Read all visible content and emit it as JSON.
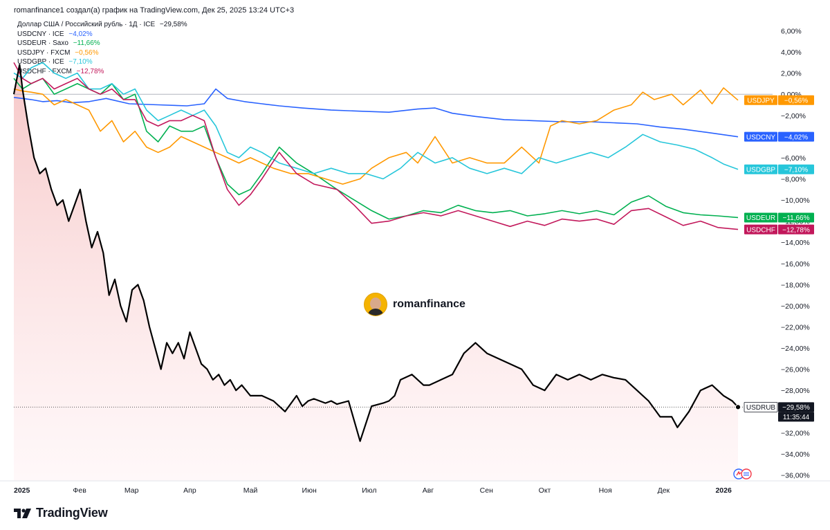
{
  "header": {
    "title": "romanfinance1 создал(а) график на TradingView.com, Дек 25, 2025 13:24 UTC+3"
  },
  "legend": {
    "main": {
      "label": "Доллар США / Российский рубль · 1Д · ICE",
      "change": "−29,58%",
      "color": "#131722"
    },
    "items": [
      {
        "label": "USDCNY · ICE",
        "change": "−4,02%",
        "color": "#2962ff"
      },
      {
        "label": "USDEUR · Saxo",
        "change": "−11,66%",
        "color": "#00b050"
      },
      {
        "label": "USDJPY · FXCM",
        "change": "−0,56%",
        "color": "#ff9800"
      },
      {
        "label": "USDGBP · ICE",
        "change": "−7,10%",
        "color": "#26c6da"
      },
      {
        "label": "USDCHF · FXCM",
        "change": "−12,78%",
        "color": "#c2185b"
      }
    ]
  },
  "watermark": {
    "text": "romanfinance"
  },
  "brand": {
    "text": "TradingView"
  },
  "chart_data": {
    "type": "line",
    "title": "Доллар США / Российский рубль · 1Д · ICE",
    "ylim": [
      -37,
      7
    ],
    "y_ticks": [
      6,
      4,
      2,
      0,
      -2,
      -4,
      -6,
      -8,
      -10,
      -12,
      -14,
      -16,
      -18,
      -20,
      -22,
      -24,
      -26,
      -28,
      -30,
      -32,
      -34,
      -36
    ],
    "y_tick_labels": [
      "6,00%",
      "4,00%",
      "2,00%",
      "0,00%",
      "−2,00%",
      "−4,00%",
      "−6,00%",
      "−8,00%",
      "−10,00%",
      "−12,00%",
      "−14,00%",
      "−16,00%",
      "−18,00%",
      "−20,00%",
      "−22,00%",
      "−24,00%",
      "−26,00%",
      "−28,00%",
      "−30,00%",
      "−32,00%",
      "−34,00%",
      "−36,00%"
    ],
    "x_range": [
      0,
      12.55
    ],
    "x_ticks": [
      0,
      1.14,
      2.04,
      3.05,
      4.1,
      5.12,
      6.16,
      7.18,
      8.19,
      9.2,
      10.25,
      11.26,
      12.3
    ],
    "x_tick_labels": [
      "2025",
      "Фев",
      "Мар",
      "Апр",
      "Май",
      "Июн",
      "Июл",
      "Авг",
      "Сен",
      "Окт",
      "Ноя",
      "Дек",
      "2026"
    ],
    "series": [
      {
        "name": "USDCNY",
        "color": "#2962ff",
        "last_label": "−4,02%",
        "x": [
          0,
          0.15,
          0.3,
          0.5,
          0.75,
          1.0,
          1.3,
          1.6,
          2.0,
          2.5,
          3.0,
          3.3,
          3.5,
          3.7,
          4.0,
          4.3,
          4.6,
          5.0,
          5.5,
          6.0,
          6.5,
          7.0,
          7.3,
          7.6,
          8.0,
          8.5,
          9.0,
          9.5,
          10.0,
          10.4,
          10.8,
          11.2,
          11.6,
          12.0,
          12.55
        ],
        "values": [
          -0.3,
          -0.4,
          -0.5,
          -0.7,
          -0.6,
          -0.8,
          -0.7,
          -0.4,
          -0.9,
          -1.0,
          -1.1,
          -0.9,
          0.5,
          -0.4,
          -0.7,
          -0.9,
          -1.1,
          -1.3,
          -1.5,
          -1.6,
          -1.7,
          -1.4,
          -1.3,
          -1.8,
          -2.1,
          -2.4,
          -2.5,
          -2.6,
          -2.6,
          -2.7,
          -2.8,
          -3.1,
          -3.3,
          -3.6,
          -4.02
        ]
      },
      {
        "name": "USDEUR",
        "color": "#00b050",
        "last_label": "−11,66%",
        "x": [
          0,
          0.15,
          0.3,
          0.5,
          0.7,
          0.9,
          1.1,
          1.3,
          1.5,
          1.7,
          1.9,
          2.1,
          2.3,
          2.5,
          2.7,
          2.9,
          3.1,
          3.3,
          3.5,
          3.7,
          3.9,
          4.1,
          4.3,
          4.6,
          4.9,
          5.2,
          5.6,
          5.9,
          6.2,
          6.5,
          6.8,
          7.1,
          7.4,
          7.7,
          8.0,
          8.3,
          8.6,
          8.9,
          9.2,
          9.5,
          9.8,
          10.1,
          10.4,
          10.7,
          11.0,
          11.3,
          11.6,
          11.9,
          12.2,
          12.55
        ],
        "values": [
          1.5,
          0.5,
          1.0,
          1.5,
          0.0,
          0.5,
          1.0,
          0.5,
          0.0,
          1.0,
          -0.5,
          0.0,
          -3.5,
          -4.5,
          -3.0,
          -3.5,
          -3.5,
          -3.0,
          -6.0,
          -8.5,
          -9.5,
          -9.0,
          -7.5,
          -5.0,
          -6.5,
          -7.5,
          -9.0,
          -10.0,
          -11.0,
          -11.8,
          -11.5,
          -11.0,
          -11.2,
          -10.5,
          -11.0,
          -11.2,
          -11.0,
          -11.5,
          -11.3,
          -11.0,
          -11.3,
          -11.0,
          -11.4,
          -10.2,
          -9.6,
          -10.6,
          -11.2,
          -11.4,
          -11.5,
          -11.66
        ]
      },
      {
        "name": "USDJPY",
        "color": "#ff9800",
        "last_label": "−0,56%",
        "x": [
          0,
          0.15,
          0.3,
          0.5,
          0.7,
          0.9,
          1.1,
          1.3,
          1.5,
          1.7,
          1.9,
          2.1,
          2.3,
          2.5,
          2.7,
          2.9,
          3.1,
          3.3,
          3.5,
          3.7,
          3.9,
          4.1,
          4.3,
          4.5,
          4.8,
          5.1,
          5.4,
          5.7,
          6.0,
          6.2,
          6.5,
          6.8,
          7.0,
          7.3,
          7.6,
          7.9,
          8.2,
          8.5,
          8.8,
          9.1,
          9.3,
          9.5,
          9.8,
          10.1,
          10.4,
          10.7,
          10.9,
          11.1,
          11.4,
          11.6,
          11.9,
          12.1,
          12.3,
          12.55
        ],
        "values": [
          0.5,
          0.3,
          0.2,
          0.0,
          -1.0,
          -0.5,
          -1.0,
          -1.5,
          -3.5,
          -2.5,
          -4.5,
          -3.5,
          -5.0,
          -5.5,
          -5.0,
          -4.0,
          -4.5,
          -5.0,
          -5.5,
          -6.0,
          -6.5,
          -6.0,
          -6.5,
          -7.0,
          -7.5,
          -7.5,
          -8.0,
          -8.5,
          -8.0,
          -7.0,
          -6.0,
          -5.5,
          -6.5,
          -4.0,
          -6.5,
          -6.0,
          -6.5,
          -6.5,
          -5.0,
          -6.5,
          -3.0,
          -2.5,
          -2.8,
          -2.5,
          -1.5,
          -1.0,
          0.2,
          -0.5,
          0.0,
          -1.0,
          0.4,
          -0.9,
          0.6,
          -0.56
        ]
      },
      {
        "name": "USDGBP",
        "color": "#26c6da",
        "last_label": "−7,10%",
        "x": [
          0,
          0.15,
          0.3,
          0.5,
          0.7,
          0.9,
          1.1,
          1.3,
          1.5,
          1.7,
          1.9,
          2.1,
          2.3,
          2.5,
          2.7,
          2.9,
          3.1,
          3.3,
          3.5,
          3.7,
          3.9,
          4.1,
          4.3,
          4.6,
          4.9,
          5.2,
          5.5,
          5.8,
          6.1,
          6.4,
          6.7,
          7.0,
          7.3,
          7.6,
          7.9,
          8.2,
          8.5,
          8.8,
          9.1,
          9.4,
          9.7,
          10.0,
          10.3,
          10.6,
          10.9,
          11.2,
          11.5,
          11.8,
          12.1,
          12.3,
          12.55
        ],
        "values": [
          2.0,
          1.5,
          2.5,
          3.0,
          2.0,
          1.5,
          2.0,
          0.5,
          0.5,
          1.0,
          0.0,
          0.5,
          -1.5,
          -2.5,
          -2.0,
          -1.5,
          -2.0,
          -1.5,
          -3.0,
          -5.5,
          -6.0,
          -5.0,
          -5.5,
          -6.5,
          -7.0,
          -7.5,
          -7.0,
          -7.5,
          -7.5,
          -8.0,
          -7.0,
          -5.5,
          -6.5,
          -6.0,
          -7.0,
          -7.5,
          -7.0,
          -7.5,
          -6.0,
          -6.5,
          -6.0,
          -5.5,
          -6.0,
          -5.0,
          -3.8,
          -4.5,
          -4.8,
          -5.2,
          -6.0,
          -6.6,
          -7.1
        ]
      },
      {
        "name": "USDCHF",
        "color": "#c2185b",
        "last_label": "−12,78%",
        "x": [
          0,
          0.15,
          0.3,
          0.5,
          0.7,
          0.9,
          1.1,
          1.3,
          1.5,
          1.7,
          1.9,
          2.1,
          2.3,
          2.5,
          2.7,
          2.9,
          3.1,
          3.3,
          3.5,
          3.7,
          3.9,
          4.1,
          4.3,
          4.6,
          4.9,
          5.2,
          5.6,
          5.9,
          6.2,
          6.5,
          6.8,
          7.1,
          7.4,
          7.7,
          8.0,
          8.3,
          8.6,
          8.9,
          9.2,
          9.5,
          9.8,
          10.1,
          10.4,
          10.7,
          11.0,
          11.3,
          11.6,
          11.9,
          12.2,
          12.55
        ],
        "values": [
          3.0,
          1.5,
          1.0,
          1.5,
          0.5,
          1.0,
          1.5,
          0.5,
          0.0,
          0.5,
          -0.5,
          -0.5,
          -2.5,
          -3.0,
          -2.5,
          -2.5,
          -2.0,
          -2.5,
          -6.0,
          -9.0,
          -10.5,
          -9.5,
          -8.0,
          -5.5,
          -7.5,
          -8.5,
          -9.0,
          -10.5,
          -12.2,
          -12.0,
          -11.5,
          -11.2,
          -11.5,
          -11.0,
          -11.5,
          -12.0,
          -12.5,
          -12.0,
          -12.4,
          -11.8,
          -12.0,
          -11.8,
          -12.3,
          -11.0,
          -10.8,
          -11.6,
          -12.4,
          -12.0,
          -12.6,
          -12.78
        ]
      },
      {
        "name": "USDRUB",
        "color": "#000000",
        "last_label": "−29,58%",
        "last_time": "11:35:44",
        "x": [
          0,
          0.1,
          0.15,
          0.25,
          0.35,
          0.45,
          0.55,
          0.65,
          0.75,
          0.85,
          0.95,
          1.05,
          1.15,
          1.25,
          1.35,
          1.45,
          1.55,
          1.65,
          1.75,
          1.85,
          1.95,
          2.05,
          2.15,
          2.25,
          2.35,
          2.45,
          2.55,
          2.65,
          2.75,
          2.85,
          2.95,
          3.05,
          3.15,
          3.25,
          3.35,
          3.45,
          3.55,
          3.65,
          3.75,
          3.85,
          3.95,
          4.1,
          4.3,
          4.5,
          4.7,
          4.9,
          5.0,
          5.1,
          5.2,
          5.3,
          5.4,
          5.5,
          5.6,
          5.8,
          6.0,
          6.2,
          6.4,
          6.5,
          6.6,
          6.7,
          6.9,
          7.1,
          7.2,
          7.4,
          7.6,
          7.8,
          8.0,
          8.2,
          8.4,
          8.6,
          8.8,
          9.0,
          9.2,
          9.4,
          9.6,
          9.8,
          10.0,
          10.2,
          10.4,
          10.6,
          10.8,
          11.0,
          11.2,
          11.4,
          11.5,
          11.7,
          11.9,
          12.1,
          12.3,
          12.45,
          12.55
        ],
        "values": [
          0.0,
          2.8,
          0.5,
          -3.0,
          -6.0,
          -7.5,
          -7.0,
          -9.0,
          -10.5,
          -10.0,
          -12.0,
          -10.5,
          -9.0,
          -12.0,
          -14.5,
          -13.0,
          -15.0,
          -19.0,
          -17.5,
          -20.0,
          -21.5,
          -18.5,
          -18.0,
          -19.5,
          -22.0,
          -24.0,
          -26.0,
          -23.5,
          -24.5,
          -23.5,
          -25.0,
          -22.5,
          -24.0,
          -25.5,
          -26.0,
          -27.0,
          -26.5,
          -27.5,
          -27.0,
          -28.0,
          -27.5,
          -28.5,
          -28.5,
          -29.0,
          -30.0,
          -28.5,
          -29.5,
          -29.0,
          -28.8,
          -29.0,
          -29.2,
          -29.0,
          -29.3,
          -29.0,
          -32.8,
          -29.5,
          -29.2,
          -29.0,
          -28.5,
          -27.0,
          -26.5,
          -27.5,
          -27.5,
          -27.0,
          -26.5,
          -24.5,
          -23.5,
          -24.5,
          -25.0,
          -25.5,
          -26.0,
          -27.5,
          -28.0,
          -26.5,
          -27.0,
          -26.5,
          -27.0,
          -26.5,
          -26.8,
          -27.0,
          -28.0,
          -29.0,
          -30.5,
          -30.5,
          -31.5,
          -30.0,
          -28.0,
          -27.5,
          -28.5,
          -29.0,
          -29.58
        ]
      }
    ]
  }
}
